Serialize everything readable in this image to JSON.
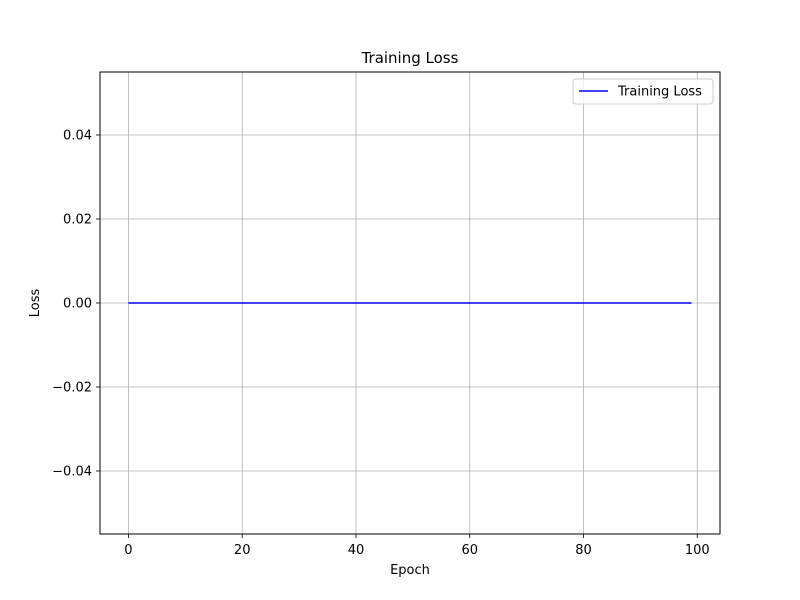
{
  "chart_data": {
    "type": "line",
    "title": "Training Loss",
    "xlabel": "Epoch",
    "ylabel": "Loss",
    "xlim": [
      -5,
      104
    ],
    "ylim": [
      -0.055,
      0.055
    ],
    "x_ticks": [
      0,
      20,
      40,
      60,
      80,
      100
    ],
    "x_tick_labels": [
      "0",
      "20",
      "40",
      "60",
      "80",
      "100"
    ],
    "y_ticks": [
      -0.04,
      -0.02,
      0.0,
      0.02,
      0.04
    ],
    "y_tick_labels": [
      "−0.04",
      "−0.02",
      "0.00",
      "0.02",
      "0.04"
    ],
    "grid": true,
    "legend": {
      "placement": "top-right",
      "entries": [
        "Training Loss"
      ]
    },
    "series": [
      {
        "name": "Training Loss",
        "color": "#0000ff",
        "x_start": 0,
        "x_end": 99,
        "value": 0.0
      }
    ]
  }
}
